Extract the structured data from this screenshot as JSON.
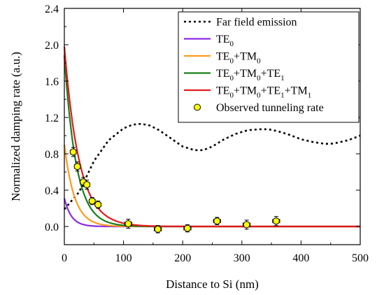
{
  "chart_data": {
    "type": "line",
    "xlabel": "Distance to Si (nm)",
    "ylabel": "Normalized damping rate (a.u.)",
    "xlim": [
      0,
      500
    ],
    "ylim": [
      -0.2,
      2.4
    ],
    "xticks": [
      0,
      100,
      200,
      300,
      400,
      500
    ],
    "yticks": [
      0.0,
      0.4,
      0.8,
      1.2,
      1.6,
      2.0,
      2.4
    ],
    "ytick_labels": [
      "0.0",
      "0.4",
      "0.8",
      "1.2",
      "1.6",
      "2.0",
      "2.4"
    ],
    "legend_position": "top-right",
    "series": [
      {
        "name": "Far field emission",
        "style": "dotted",
        "color": "#000000",
        "x": [
          0,
          25,
          50,
          75,
          100,
          115,
          130,
          145,
          160,
          180,
          200,
          220,
          235,
          250,
          270,
          290,
          310,
          330,
          345,
          360,
          380,
          400,
          420,
          440,
          450,
          460,
          480,
          500
        ],
        "y": [
          0.19,
          0.38,
          0.72,
          0.95,
          1.08,
          1.12,
          1.13,
          1.11,
          1.06,
          0.97,
          0.88,
          0.84,
          0.84,
          0.88,
          0.96,
          1.02,
          1.06,
          1.07,
          1.07,
          1.05,
          1.01,
          0.96,
          0.93,
          0.91,
          0.91,
          0.92,
          0.95,
          1.0
        ]
      },
      {
        "name": "TE0",
        "label": "TE",
        "sub": "0",
        "color": "#8a2be2",
        "amplitude": 0.31,
        "decay": 12
      },
      {
        "name": "TE0+TM0",
        "label": "TE",
        "sub": "0",
        "label2": "+TM",
        "sub2": "0",
        "color": "#ff9a1f",
        "amplitude": 0.9,
        "decay": 17
      },
      {
        "name": "TE0+TM0+TE1",
        "label": "TE",
        "sub": "0",
        "label2": "+TM",
        "sub2": "0",
        "label3": "+TE",
        "sub3": "1",
        "color": "#1a7f1a",
        "amplitude": 1.88,
        "decay": 20
      },
      {
        "name": "TE0+TM0+TE1+TM1",
        "label": "TE",
        "sub": "0",
        "label2": "+TM",
        "sub2": "0",
        "label3": "+TE",
        "sub3": "1",
        "label4": "+TM",
        "sub4": "1",
        "color": "#e41a1c",
        "amplitude": 1.98,
        "decay": 25
      }
    ],
    "observed": {
      "name": "Observed tunneling rate",
      "color": "#ffff00",
      "points": [
        {
          "x": 15,
          "y": 0.82,
          "xerr": 5,
          "yerr": 0.05
        },
        {
          "x": 22,
          "y": 0.66,
          "xerr": 5,
          "yerr": 0.05
        },
        {
          "x": 32,
          "y": 0.49,
          "xerr": 5,
          "yerr": 0.05
        },
        {
          "x": 38,
          "y": 0.46,
          "xerr": 5,
          "yerr": 0.05
        },
        {
          "x": 47,
          "y": 0.28,
          "xerr": 5,
          "yerr": 0.04
        },
        {
          "x": 57,
          "y": 0.24,
          "xerr": 5,
          "yerr": 0.04
        },
        {
          "x": 108,
          "y": 0.03,
          "xerr": 6,
          "yerr": 0.05
        },
        {
          "x": 158,
          "y": -0.03,
          "xerr": 6,
          "yerr": 0.04
        },
        {
          "x": 208,
          "y": -0.02,
          "xerr": 6,
          "yerr": 0.04
        },
        {
          "x": 258,
          "y": 0.06,
          "xerr": 6,
          "yerr": 0.04
        },
        {
          "x": 308,
          "y": 0.02,
          "xerr": 6,
          "yerr": 0.05
        },
        {
          "x": 358,
          "y": 0.06,
          "xerr": 6,
          "yerr": 0.05
        }
      ]
    }
  }
}
